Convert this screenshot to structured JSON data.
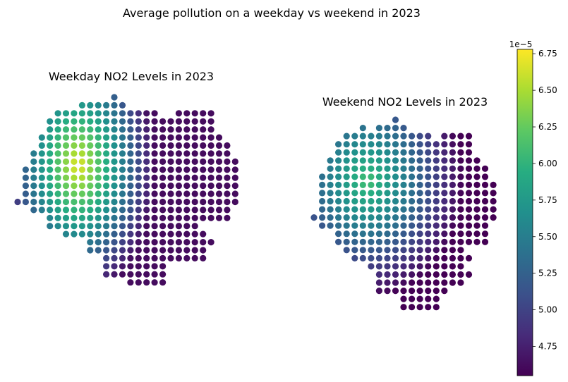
{
  "figure": {
    "title": "Average pollution on a weekday vs weekend in 2023"
  },
  "chart_data": [
    {
      "type": "scatter",
      "title": "Weekday NO2 Levels in 2023",
      "xlabel": "",
      "ylabel": "",
      "axes_visible": false,
      "value_scale": 1e-05,
      "grid_unit": "cell",
      "points_note": "points generated from row extents below; colour from value field",
      "rows": [
        {
          "y": 0,
          "x_start": 12,
          "x_end": 12
        },
        {
          "y": 1,
          "x_start": 8,
          "x_end": 13
        },
        {
          "y": 2,
          "x_start": 5,
          "x_end": 17
        },
        {
          "y": 2,
          "x_start": 20,
          "x_end": 24
        },
        {
          "y": 3,
          "x_start": 4,
          "x_end": 24
        },
        {
          "y": 4,
          "x_start": 4,
          "x_end": 24
        },
        {
          "y": 5,
          "x_start": 3,
          "x_end": 25
        },
        {
          "y": 6,
          "x_start": 3,
          "x_end": 26
        },
        {
          "y": 7,
          "x_start": 2,
          "x_end": 26
        },
        {
          "y": 8,
          "x_start": 2,
          "x_end": 27
        },
        {
          "y": 9,
          "x_start": 1,
          "x_end": 27
        },
        {
          "y": 10,
          "x_start": 1,
          "x_end": 27
        },
        {
          "y": 11,
          "x_start": 1,
          "x_end": 27
        },
        {
          "y": 12,
          "x_start": 1,
          "x_end": 27
        },
        {
          "y": 13,
          "x_start": 0,
          "x_end": 27
        },
        {
          "y": 14,
          "x_start": 2,
          "x_end": 26
        },
        {
          "y": 15,
          "x_start": 4,
          "x_end": 26
        },
        {
          "y": 16,
          "x_start": 4,
          "x_end": 22
        },
        {
          "y": 17,
          "x_start": 6,
          "x_end": 23
        },
        {
          "y": 18,
          "x_start": 9,
          "x_end": 24
        },
        {
          "y": 19,
          "x_start": 9,
          "x_end": 23
        },
        {
          "y": 20,
          "x_start": 11,
          "x_end": 22
        },
        {
          "y": 20,
          "x_start": 23,
          "x_end": 23
        },
        {
          "y": 21,
          "x_start": 11,
          "x_end": 18
        },
        {
          "y": 22,
          "x_start": 11,
          "x_end": 18
        },
        {
          "y": 23,
          "x_start": 14,
          "x_end": 18
        }
      ],
      "value_field": {
        "peak_x": 7.5,
        "peak_y": 8.5,
        "peak": 6.72,
        "falloff_x": 0.105,
        "falloff_y": 0.062,
        "floor": 4.62
      },
      "value_range": [
        4.6,
        6.75
      ]
    },
    {
      "type": "scatter",
      "title": "Weekend NO2 Levels in 2023",
      "xlabel": "",
      "ylabel": "",
      "axes_visible": false,
      "value_scale": 1e-05,
      "grid_unit": "cell",
      "points_note": "points generated from row extents below; colour from value field",
      "rows": [
        {
          "y": 0,
          "x_start": 10,
          "x_end": 10
        },
        {
          "y": 1,
          "x_start": 6,
          "x_end": 6
        },
        {
          "y": 1,
          "x_start": 8,
          "x_end": 11
        },
        {
          "y": 2,
          "x_start": 4,
          "x_end": 14
        },
        {
          "y": 2,
          "x_start": 16,
          "x_end": 19
        },
        {
          "y": 3,
          "x_start": 3,
          "x_end": 19
        },
        {
          "y": 4,
          "x_start": 3,
          "x_end": 19
        },
        {
          "y": 5,
          "x_start": 2,
          "x_end": 20
        },
        {
          "y": 6,
          "x_start": 2,
          "x_end": 21
        },
        {
          "y": 7,
          "x_start": 1,
          "x_end": 21
        },
        {
          "y": 8,
          "x_start": 1,
          "x_end": 22
        },
        {
          "y": 9,
          "x_start": 1,
          "x_end": 22
        },
        {
          "y": 10,
          "x_start": 1,
          "x_end": 22
        },
        {
          "y": 11,
          "x_start": 1,
          "x_end": 22
        },
        {
          "y": 12,
          "x_start": 0,
          "x_end": 22
        },
        {
          "y": 13,
          "x_start": 1,
          "x_end": 21
        },
        {
          "y": 14,
          "x_start": 3,
          "x_end": 21
        },
        {
          "y": 15,
          "x_start": 3,
          "x_end": 21
        },
        {
          "y": 16,
          "x_start": 4,
          "x_end": 18
        },
        {
          "y": 17,
          "x_start": 5,
          "x_end": 19
        },
        {
          "y": 18,
          "x_start": 7,
          "x_end": 18
        },
        {
          "y": 19,
          "x_start": 8,
          "x_end": 19
        },
        {
          "y": 20,
          "x_start": 8,
          "x_end": 18
        },
        {
          "y": 21,
          "x_start": 8,
          "x_end": 16
        },
        {
          "y": 22,
          "x_start": 11,
          "x_end": 15
        },
        {
          "y": 23,
          "x_start": 11,
          "x_end": 15
        }
      ],
      "value_field": {
        "peak_x": 6.5,
        "peak_y": 7.5,
        "peak": 6.12,
        "falloff_x": 0.085,
        "falloff_y": 0.07,
        "floor": 4.55
      },
      "value_range": [
        4.55,
        6.75
      ]
    }
  ],
  "colorbar": {
    "colormap": "viridis",
    "min": 4.55,
    "max": 6.78,
    "scale_label": "1e−5",
    "ticks": [
      {
        "value": 4.75,
        "label": "4.75"
      },
      {
        "value": 5.0,
        "label": "5.00"
      },
      {
        "value": 5.25,
        "label": "5.25"
      },
      {
        "value": 5.5,
        "label": "5.50"
      },
      {
        "value": 5.75,
        "label": "5.75"
      },
      {
        "value": 6.0,
        "label": "6.00"
      },
      {
        "value": 6.25,
        "label": "6.25"
      },
      {
        "value": 6.5,
        "label": "6.50"
      },
      {
        "value": 6.75,
        "label": "6.75"
      }
    ]
  }
}
